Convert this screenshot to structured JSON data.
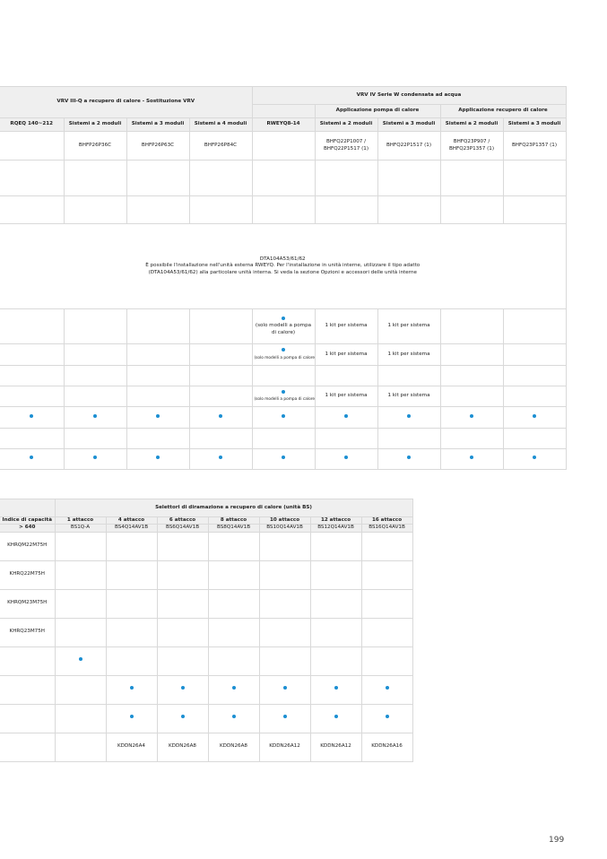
{
  "colors": {
    "dot": "#1b8fd2",
    "header_bg": "#efefef",
    "grid": "#d9d9d9"
  },
  "table1": {
    "group_left": "VRV III-Q a recupero di calore - Sostituzione VRV",
    "group_right": "VRV IV Serie W condensata ad acqua",
    "sub_heat_pump": "Applicazione pompa di calore",
    "sub_heat_recovery": "Applicazione recupero di calore",
    "columns": [
      "RQEQ 140~212",
      "Sistemi a 2 moduli",
      "Sistemi a 3 moduli",
      "Sistemi a 4 moduli",
      "RWEYQ8-14",
      "Sistemi a 2 moduli",
      "Sistemi a 3 moduli",
      "Sistemi a 2 moduli",
      "Sistemi a 3 moduli"
    ],
    "rows": [
      {
        "cells": [
          "",
          "BHFP26P36C",
          "BHFP26P63C",
          "BHFP26P84C",
          "",
          "BHFQ22P1007 / BHFQ22P1517 (1)",
          "BHFQ22P1517 (1)",
          "BHFQ23P907 / BHFQ23P1357 (1)",
          "BHFQ23P1357 (1)"
        ]
      },
      {
        "cells": [
          "",
          "",
          "",
          "",
          "",
          "",
          "",
          "",
          ""
        ]
      },
      {
        "cells": [
          "",
          "",
          "",
          "",
          "",
          "",
          "",
          "",
          ""
        ]
      },
      {
        "merged": [
          "DTA104A53/61/62",
          "È possibile l'installazione nell'unità esterna RWEYQ.  Per l'installazione in unità interne, utilizzare il tipo adatto",
          "(DTA104A53/61/62) alla particolare unità interna. Si veda la sezione Opzioni e accessori delle unità interne"
        ]
      },
      {
        "cells": [
          "",
          "",
          "",
          "",
          {
            "dot": true,
            "note": "(solo modelli a pompa di calore)"
          },
          "1 kit per sistema",
          "1 kit per sistema",
          "",
          ""
        ]
      },
      {
        "cells": [
          "",
          "",
          "",
          "",
          {
            "dot": true,
            "note": "(solo modelli a pompa di calore)",
            "small": true
          },
          "1 kit per sistema",
          "1 kit per sistema",
          "",
          ""
        ]
      },
      {
        "cells": [
          "",
          "",
          "",
          "",
          "",
          "",
          "",
          "",
          ""
        ]
      },
      {
        "cells": [
          "",
          "",
          "",
          "",
          {
            "dot": true,
            "note": "(solo modelli a pompa di calore)",
            "small": true
          },
          "1 kit per sistema",
          "1 kit per sistema",
          "",
          ""
        ]
      },
      {
        "cells": [
          {
            "dot": true
          },
          {
            "dot": true
          },
          {
            "dot": true
          },
          {
            "dot": true
          },
          {
            "dot": true
          },
          {
            "dot": true
          },
          {
            "dot": true
          },
          {
            "dot": true
          },
          {
            "dot": true
          }
        ]
      },
      {
        "cells": [
          "",
          "",
          "",
          "",
          "",
          "",
          "",
          "",
          ""
        ]
      },
      {
        "cells": [
          {
            "dot": true
          },
          {
            "dot": true
          },
          {
            "dot": true
          },
          {
            "dot": true
          },
          {
            "dot": true
          },
          {
            "dot": true
          },
          {
            "dot": true
          },
          {
            "dot": true
          },
          {
            "dot": true
          }
        ]
      }
    ]
  },
  "table2": {
    "group": "Selettori di diramazione a recupero di calore (unità BS)",
    "columns": [
      "Indice di capacità",
      "1 attacco",
      "4 attacco",
      "6 attacco",
      "8 attacco",
      "10 attacco",
      "12 attacco",
      "16 attacco"
    ],
    "models": [
      "> 640",
      "BS1Q-A",
      "BS4Q14AV1B",
      "BS6Q14AV1B",
      "BS8Q14AV1B",
      "BS10Q14AV1B",
      "BS12Q14AV1B",
      "BS16Q14AV1B"
    ],
    "rows": [
      {
        "cells": [
          "KHRQM22M75H",
          "",
          "",
          "",
          "",
          "",
          "",
          ""
        ]
      },
      {
        "cells": [
          "KHRQ22M75H",
          "",
          "",
          "",
          "",
          "",
          "",
          ""
        ]
      },
      {
        "cells": [
          "KHRQM23M75H",
          "",
          "",
          "",
          "",
          "",
          "",
          ""
        ]
      },
      {
        "cells": [
          "KHRQ23M75H",
          "",
          "",
          "",
          "",
          "",
          "",
          ""
        ]
      },
      {
        "cells": [
          "",
          {
            "dot": true
          },
          "",
          "",
          "",
          "",
          "",
          ""
        ]
      },
      {
        "cells": [
          "",
          "",
          {
            "dot": true
          },
          {
            "dot": true
          },
          {
            "dot": true
          },
          {
            "dot": true
          },
          {
            "dot": true
          },
          {
            "dot": true
          }
        ]
      },
      {
        "cells": [
          "",
          "",
          {
            "dot": true
          },
          {
            "dot": true
          },
          {
            "dot": true
          },
          {
            "dot": true
          },
          {
            "dot": true
          },
          {
            "dot": true
          }
        ]
      },
      {
        "cells": [
          "",
          "",
          "KDDN26A4",
          "KDDN26A8",
          "KDDN26A8",
          "KDDN26A12",
          "KDDN26A12",
          "KDDN26A16"
        ]
      }
    ]
  },
  "page_number": "199"
}
